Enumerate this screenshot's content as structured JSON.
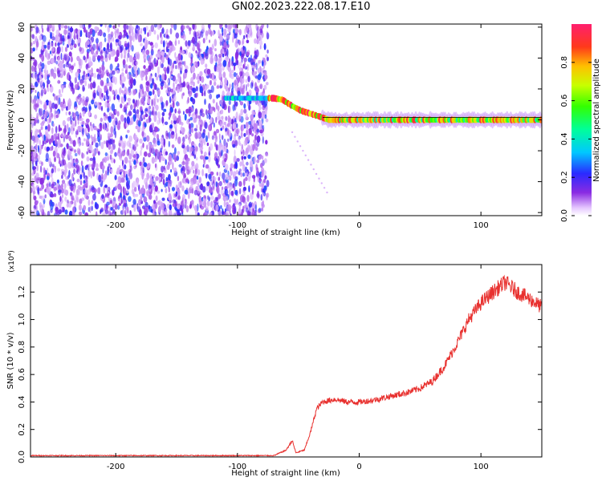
{
  "title": "GN02.2023.222.08.17.E10",
  "colors": {
    "snr_line": "#e8312f",
    "ridge": "#000000",
    "background_scatter": "#7a2cff"
  },
  "chart_data": [
    {
      "type": "heatmap",
      "title": "GN02.2023.222.08.17.E10",
      "xlabel": "Height of straight line (km)",
      "ylabel": "Frequency (Hz)",
      "xlim": [
        -270,
        150
      ],
      "ylim": [
        -62,
        62
      ],
      "xticks": [
        -200,
        -100,
        0,
        100
      ],
      "xtick_labels": [
        "-200",
        "-100",
        "0",
        "100"
      ],
      "yticks": [
        60,
        40,
        20,
        0,
        -20,
        -40,
        -60
      ],
      "ytick_labels": [
        "60",
        "40",
        "20",
        "0",
        "-20",
        "-40",
        "-60"
      ],
      "colorbar": {
        "label": "Normalized spectral amplitude",
        "range": [
          0,
          1
        ],
        "ticks": [
          0.0,
          0.2,
          0.4,
          0.6,
          0.8
        ],
        "tick_labels": [
          "0.0",
          "0.2",
          "0.4",
          "0.6",
          "0.8"
        ],
        "colormap": "rainbow"
      },
      "noise_region": {
        "x_range": [
          -270,
          -75
        ],
        "freq_range": [
          -62,
          62
        ],
        "amplitude": [
          0.05,
          0.25
        ]
      },
      "ridge": {
        "x": [
          -108,
          -95,
          -80,
          -70,
          -63,
          -55,
          -48,
          -40,
          -32,
          -25,
          -18,
          -10,
          0,
          20,
          50,
          80,
          110,
          150
        ],
        "freq": [
          14,
          14,
          14,
          14,
          13,
          9,
          6,
          4,
          2,
          0,
          0,
          0,
          0,
          0,
          0,
          0,
          0,
          0
        ]
      },
      "grid": false,
      "legend": "none"
    },
    {
      "type": "line",
      "xlabel": "Height of straight line (km)",
      "ylabel": "SNR (10 * v/v)",
      "y_scale_label": "(x10⁴)",
      "xlim": [
        -270,
        150
      ],
      "ylim": [
        0,
        1.4
      ],
      "xticks": [
        -200,
        -100,
        0,
        100
      ],
      "xtick_labels": [
        "-200",
        "-100",
        "0",
        "100"
      ],
      "yticks": [
        0.0,
        0.2,
        0.4,
        0.6,
        0.8,
        1.0,
        1.2
      ],
      "ytick_labels": [
        "0.0",
        "0.2",
        "0.4",
        "0.6",
        "0.8",
        "1.0",
        "1.2"
      ],
      "series": [
        {
          "x": [
            -270,
            -200,
            -150,
            -100,
            -70,
            -60,
            -55,
            -52,
            -45,
            -40,
            -35,
            -30,
            -20,
            -10,
            0,
            10,
            20,
            30,
            40,
            50,
            60,
            70,
            80,
            90,
            100,
            110,
            120,
            130,
            140,
            150
          ],
          "y": [
            0.01,
            0.01,
            0.01,
            0.01,
            0.01,
            0.05,
            0.12,
            0.03,
            0.05,
            0.18,
            0.35,
            0.4,
            0.42,
            0.4,
            0.4,
            0.41,
            0.43,
            0.45,
            0.47,
            0.5,
            0.55,
            0.66,
            0.82,
            1.0,
            1.12,
            1.2,
            1.27,
            1.2,
            1.15,
            1.09
          ]
        }
      ],
      "grid": false,
      "legend": "none"
    }
  ]
}
